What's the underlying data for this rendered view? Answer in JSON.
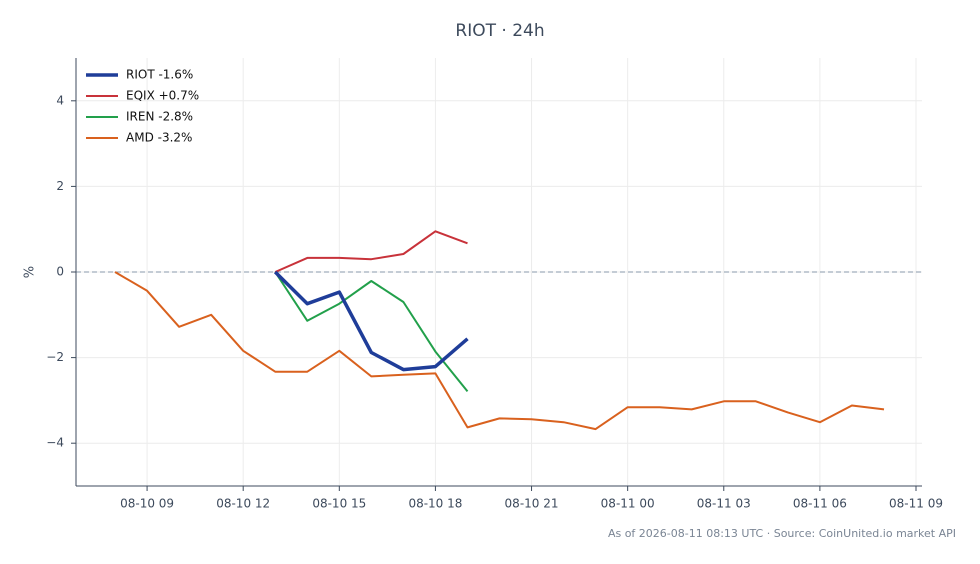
{
  "chart_data": {
    "type": "line",
    "title": "RIOT · 24h",
    "ylabel": "%",
    "footer": "As of 2026-08-11 08:13 UTC · Source: CoinUnited.io market API",
    "x": [
      "08-10 08",
      "08-10 09",
      "08-10 10",
      "08-10 11",
      "08-10 12",
      "08-10 13",
      "08-10 14",
      "08-10 15",
      "08-10 16",
      "08-10 17",
      "08-10 18",
      "08-10 19",
      "08-10 20",
      "08-10 21",
      "08-10 22",
      "08-10 23",
      "08-11 00",
      "08-11 01",
      "08-11 02",
      "08-11 03",
      "08-11 04",
      "08-11 05",
      "08-11 06",
      "08-11 07",
      "08-11 08"
    ],
    "series": [
      {
        "name": "RIOT -1.6%",
        "color": "#1f3d99",
        "width": 3.5,
        "values": [
          null,
          null,
          null,
          null,
          null,
          0,
          -0.74,
          -0.47,
          -1.88,
          -2.28,
          -2.21,
          -1.56,
          null,
          null,
          null,
          null,
          null,
          null,
          null,
          null,
          null,
          null,
          null,
          null,
          null
        ]
      },
      {
        "name": "EQIX +0.7%",
        "color": "#c8323a",
        "width": 2,
        "values": [
          null,
          null,
          null,
          null,
          null,
          0,
          0.33,
          0.33,
          0.3,
          0.42,
          0.95,
          0.67,
          null,
          null,
          null,
          null,
          null,
          null,
          null,
          null,
          null,
          null,
          null,
          null,
          null
        ]
      },
      {
        "name": "IREN -2.8%",
        "color": "#22a04b",
        "width": 2,
        "values": [
          null,
          null,
          null,
          null,
          null,
          0,
          -1.14,
          -0.74,
          -0.21,
          -0.7,
          -1.86,
          -2.79,
          null,
          null,
          null,
          null,
          null,
          null,
          null,
          null,
          null,
          null,
          null,
          null,
          null
        ]
      },
      {
        "name": "AMD -3.2%",
        "color": "#d9611e",
        "width": 2,
        "values": [
          0,
          -0.44,
          -1.28,
          -1.0,
          -1.84,
          -2.33,
          -2.33,
          -1.84,
          -2.44,
          -2.4,
          -2.37,
          -3.63,
          -3.42,
          -3.44,
          -3.51,
          -3.67,
          -3.16,
          -3.16,
          -3.21,
          -3.02,
          -3.02,
          -3.28,
          -3.51,
          -3.12,
          -3.21
        ]
      }
    ],
    "xlim": [
      "08-10 07",
      "08-11 09"
    ],
    "xticks": [
      "08-10 09",
      "08-10 12",
      "08-10 15",
      "08-10 18",
      "08-10 21",
      "08-11 00",
      "08-11 03",
      "08-11 06",
      "08-11 09"
    ],
    "ylim": [
      -5,
      5
    ],
    "yticks": [
      {
        "value": -4,
        "label": "−4"
      },
      {
        "value": -2,
        "label": "−2"
      },
      0,
      2,
      4
    ],
    "reference_line": 0,
    "grid": true,
    "legend": "upper-left"
  }
}
